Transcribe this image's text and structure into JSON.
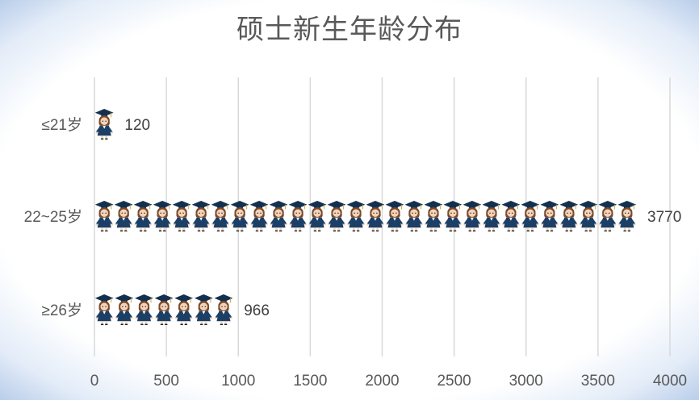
{
  "chart_data": {
    "type": "bar",
    "orientation": "horizontal",
    "title": "硕士新生年龄分布",
    "categories": [
      "≤21岁",
      "22~25岁",
      "≥26岁"
    ],
    "values": [
      120,
      3770,
      966
    ],
    "xlim": [
      0,
      4000
    ],
    "x_ticks": [
      0,
      500,
      1000,
      1500,
      2000,
      2500,
      3000,
      3500,
      4000
    ],
    "x_tick_labels": [
      "0",
      "500",
      "1000",
      "1500",
      "2000",
      "2500",
      "3000",
      "3500",
      "4000"
    ],
    "grid": "vertical",
    "legend": "none",
    "mark_icon": "graduate-figure-icon",
    "colors": {
      "gown": "#1c3f66",
      "cap": "#13304f",
      "hair": "#7a4a2a",
      "skin": "#f6d3b8",
      "text": "#595959",
      "grid": "#d9d9d9",
      "border": "#b9cdea"
    }
  }
}
